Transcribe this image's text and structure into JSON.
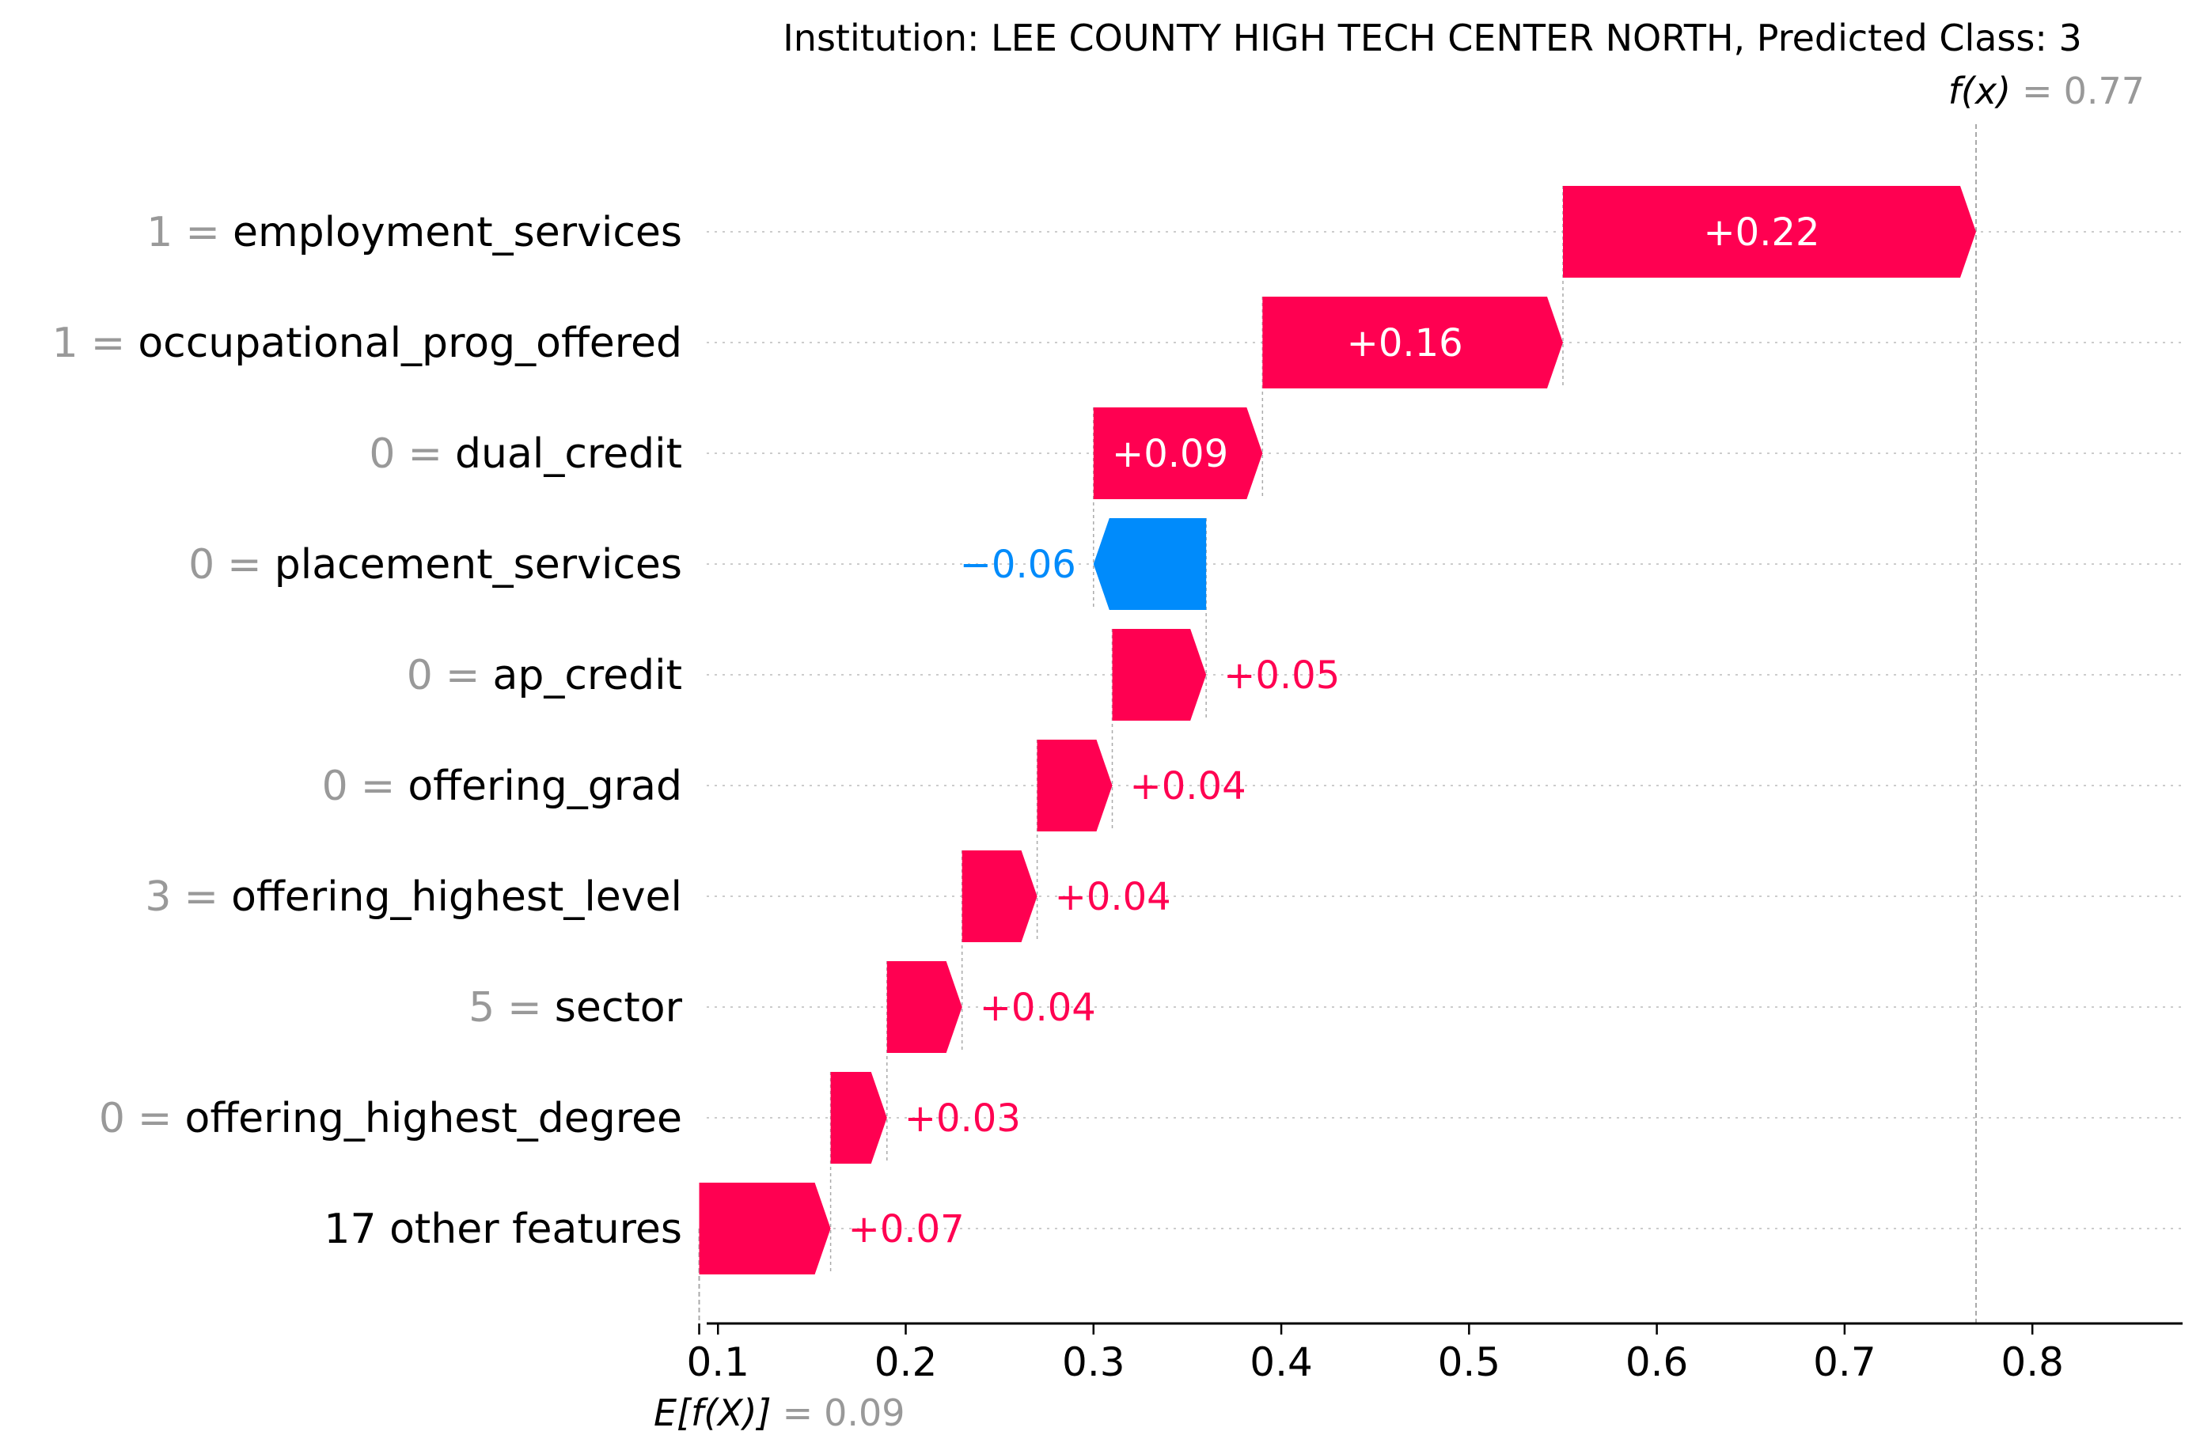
{
  "chart_data": {
    "type": "waterfall",
    "title": "Institution: LEE COUNTY HIGH TECH CENTER NORTH, Predicted Class: 3",
    "base_value": 0.09,
    "base_value_text": "0.09",
    "base_label": "E[f(X)]",
    "output_value": 0.77,
    "output_value_text": "0.77",
    "output_label": "f(x)",
    "equals_sign": "=",
    "features": [
      {
        "value": "1",
        "name": "employment_services",
        "contribution": 0.22,
        "label": "+0.22"
      },
      {
        "value": "1",
        "name": "occupational_prog_offered",
        "contribution": 0.16,
        "label": "+0.16"
      },
      {
        "value": "0",
        "name": "dual_credit",
        "contribution": 0.09,
        "label": "+0.09"
      },
      {
        "value": "0",
        "name": "placement_services",
        "contribution": -0.06,
        "label": "−0.06"
      },
      {
        "value": "0",
        "name": "ap_credit",
        "contribution": 0.05,
        "label": "+0.05"
      },
      {
        "value": "0",
        "name": "offering_grad",
        "contribution": 0.04,
        "label": "+0.04"
      },
      {
        "value": "3",
        "name": "offering_highest_level",
        "contribution": 0.04,
        "label": "+0.04"
      },
      {
        "value": "5",
        "name": "sector",
        "contribution": 0.04,
        "label": "+0.04"
      },
      {
        "value": "0",
        "name": "offering_highest_degree",
        "contribution": 0.03,
        "label": "+0.03"
      },
      {
        "value": "",
        "name": "17 other features",
        "contribution": 0.07,
        "label": "+0.07"
      }
    ],
    "x_ticks": [
      0.1,
      0.2,
      0.3,
      0.4,
      0.5,
      0.6,
      0.7,
      0.8
    ],
    "x_tick_labels": [
      "0.1",
      "0.2",
      "0.3",
      "0.4",
      "0.5",
      "0.6",
      "0.7",
      "0.8"
    ],
    "xlim": [
      0.094,
      0.88
    ],
    "colors": {
      "positive": "#ff0051",
      "negative": "#008bfb",
      "value_gray": "#999999",
      "text": "#000000",
      "grid": "#cccccc"
    }
  }
}
